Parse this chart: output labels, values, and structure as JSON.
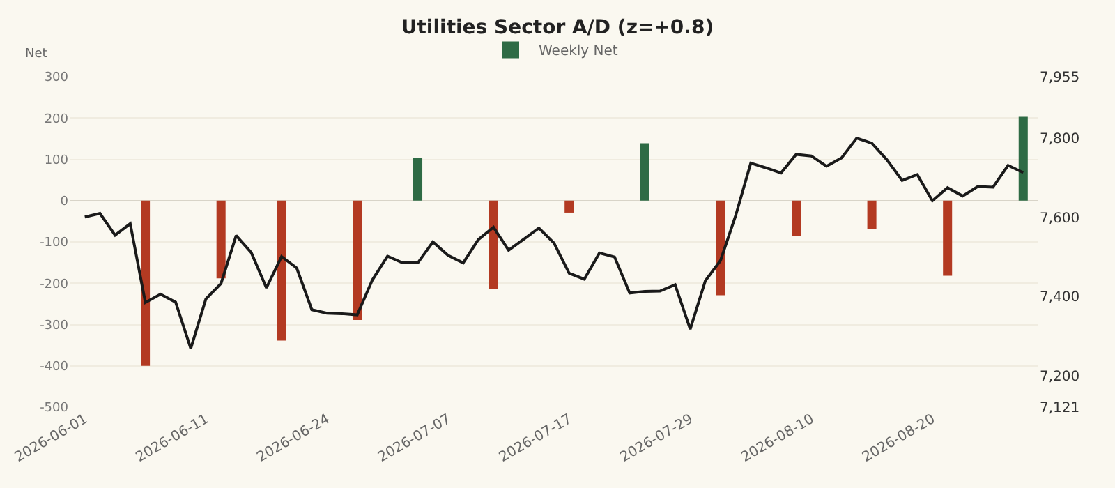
{
  "chart_data": {
    "type": "bar",
    "title": "Utilities Sector A/D (z=+0.8)",
    "ylabel": "Net",
    "categories": [
      "2026-06-01",
      null,
      null,
      null,
      null,
      null,
      null,
      null,
      "2026-06-11",
      null,
      null,
      null,
      null,
      null,
      null,
      null,
      "2026-06-24",
      null,
      null,
      null,
      null,
      null,
      null,
      null,
      "2026-07-07",
      null,
      null,
      null,
      null,
      null,
      null,
      null,
      "2026-07-17",
      null,
      null,
      null,
      null,
      null,
      null,
      null,
      "2026-07-29",
      null,
      null,
      null,
      null,
      null,
      null,
      null,
      "2026-08-10",
      null,
      null,
      null,
      null,
      null,
      null,
      null,
      "2026-08-20",
      null,
      null,
      null,
      null,
      null,
      null
    ],
    "series": [
      {
        "name": "Weekly Net",
        "color": "#2e6b45",
        "values": [
          null,
          null,
          null,
          null,
          -400,
          null,
          null,
          null,
          null,
          -188,
          null,
          null,
          null,
          -339,
          null,
          null,
          null,
          null,
          -289,
          null,
          null,
          null,
          103,
          null,
          null,
          null,
          null,
          -214,
          null,
          null,
          null,
          null,
          -29,
          null,
          null,
          null,
          null,
          139,
          null,
          null,
          null,
          null,
          -229,
          null,
          null,
          null,
          null,
          -86,
          null,
          null,
          null,
          null,
          -68,
          null,
          null,
          null,
          null,
          -182,
          null,
          null,
          null,
          null,
          203
        ],
        "colors": [
          null,
          null,
          null,
          null,
          "#b33a22",
          null,
          null,
          null,
          null,
          "#b33a22",
          null,
          null,
          null,
          "#b33a22",
          null,
          null,
          null,
          null,
          "#b33a22",
          null,
          null,
          null,
          "#2e6b45",
          null,
          null,
          null,
          null,
          "#b33a22",
          null,
          null,
          null,
          null,
          "#b33a22",
          null,
          null,
          null,
          null,
          "#2e6b45",
          null,
          null,
          null,
          null,
          "#b33a22",
          null,
          null,
          null,
          null,
          "#b33a22",
          null,
          null,
          null,
          null,
          "#b33a22",
          null,
          null,
          null,
          null,
          "#b33a22",
          null,
          null,
          null,
          null,
          "#2e6b45"
        ]
      },
      {
        "type": "line",
        "axis": "y2",
        "color": "#1a1a1a",
        "marker": "none",
        "line_style": "solid",
        "values": [
          7601,
          7610,
          7555,
          7584,
          7385,
          7406,
          7386,
          7269,
          7394,
          7433,
          7554,
          7511,
          7422,
          7501,
          7472,
          7367,
          7358,
          7357,
          7354,
          7442,
          7502,
          7485,
          7485,
          7538,
          7504,
          7485,
          7544,
          7575,
          7517,
          7545,
          7573,
          7535,
          7459,
          7444,
          7510,
          7500,
          7409,
          7413,
          7414,
          7430,
          7318,
          7440,
          7491,
          7604,
          7737,
          7725,
          7712,
          7759,
          7755,
          7729,
          7750,
          7800,
          7787,
          7745,
          7693,
          7708,
          7642,
          7675,
          7654,
          7678,
          7676,
          7731,
          7713
        ]
      }
    ],
    "ylim": [
      -500,
      300
    ],
    "yticks": [
      -500,
      -400,
      -300,
      -200,
      -100,
      0,
      100,
      200,
      300
    ],
    "y2lim": [
      7121,
      7955
    ],
    "y2ticks": [
      {
        "value": 7121,
        "label": "7,121"
      },
      {
        "value": 7200,
        "label": "7,200"
      },
      {
        "value": 7400,
        "label": "7,400"
      },
      {
        "value": 7600,
        "label": "7,600"
      },
      {
        "value": 7800,
        "label": "7,800"
      },
      {
        "value": 7955,
        "label": "7,955"
      }
    ],
    "grid": "y",
    "legend": "top"
  }
}
